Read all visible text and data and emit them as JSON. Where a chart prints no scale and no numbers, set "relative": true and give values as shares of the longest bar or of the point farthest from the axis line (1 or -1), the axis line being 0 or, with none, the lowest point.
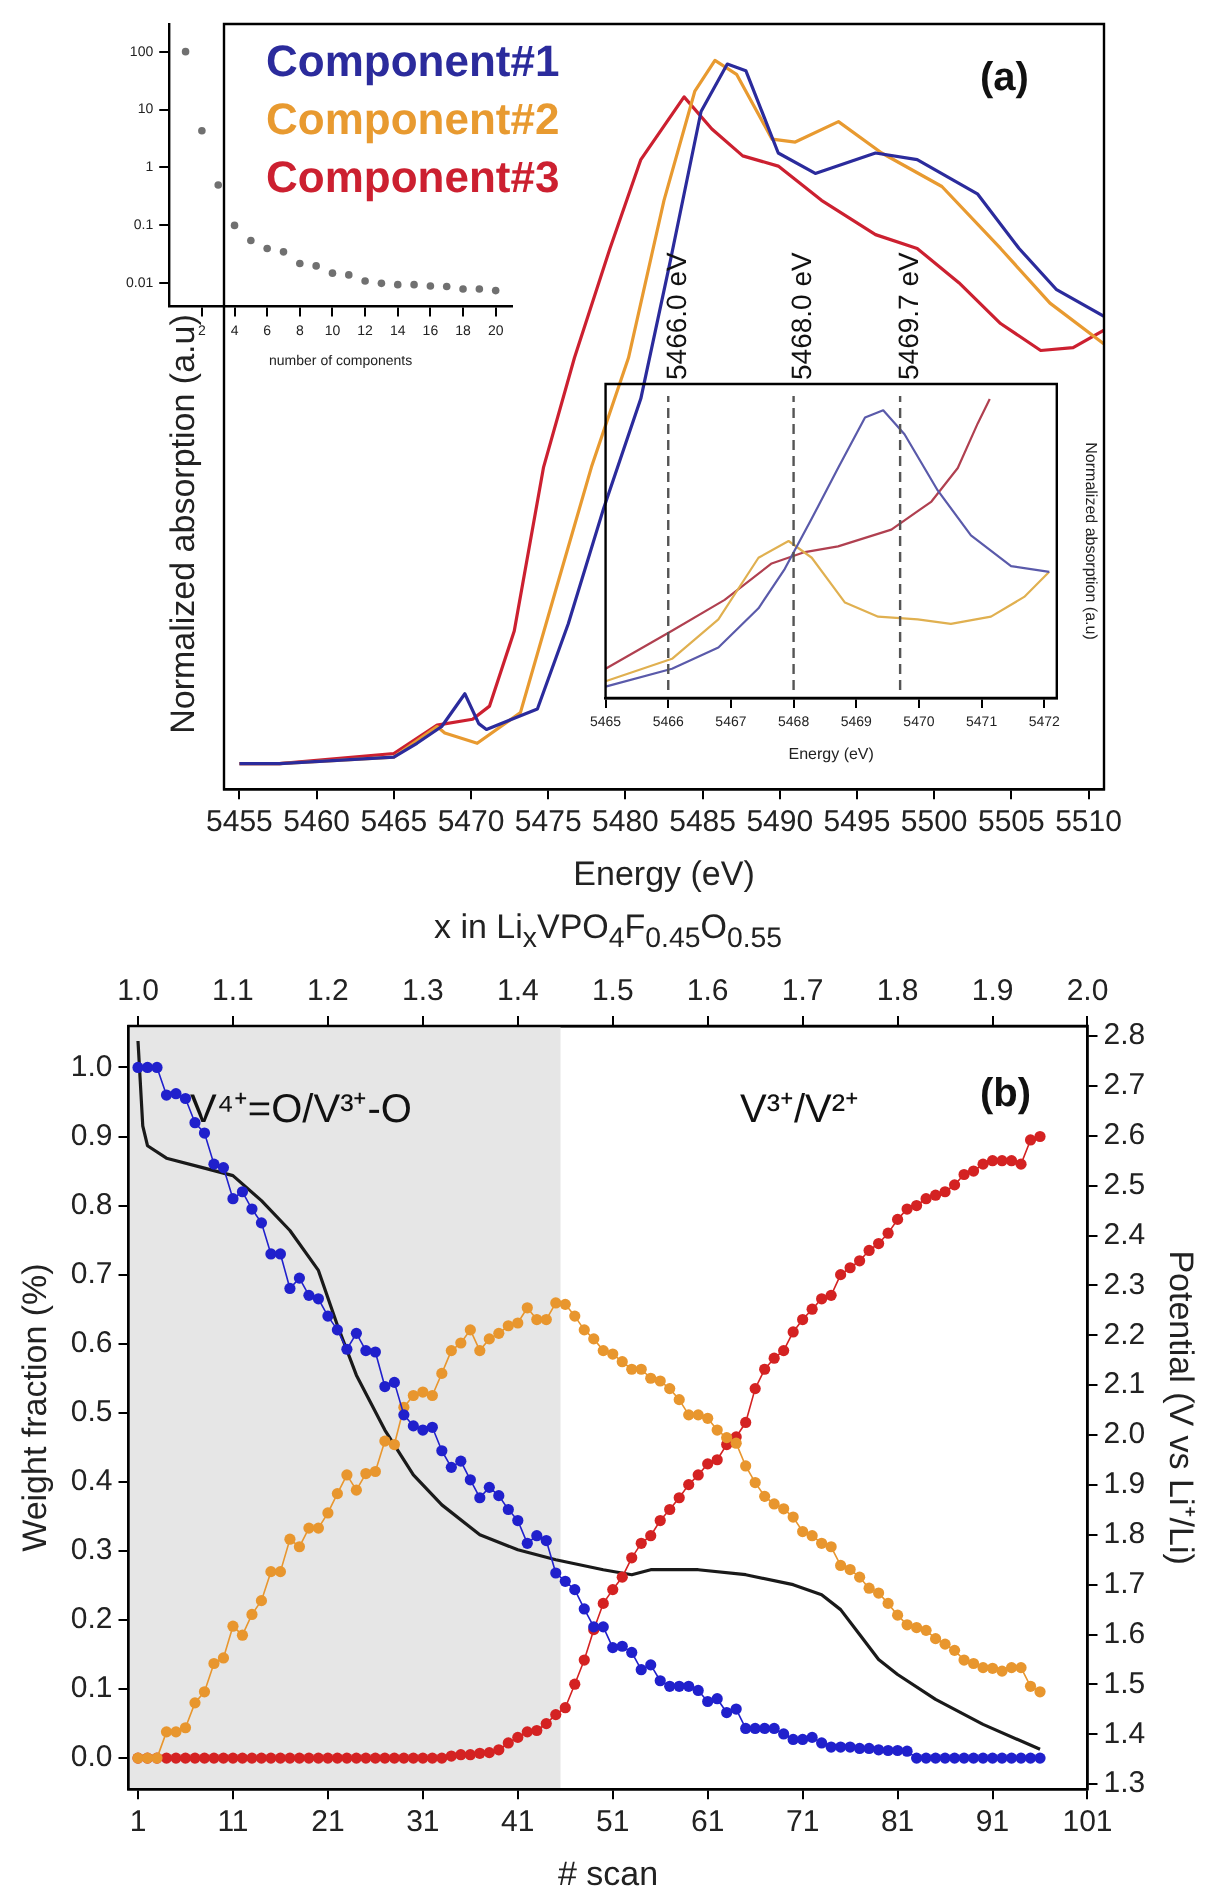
{
  "chart_data": [
    {
      "type": "line",
      "relative": true,
      "xlabel": "Energy (eV)",
      "ylabel": "Normalized absorption (a.u)",
      "xlim": [
        5454,
        5511
      ],
      "xticks": [
        5455,
        5460,
        5465,
        5470,
        5475,
        5480,
        5485,
        5490,
        5495,
        5500,
        5505,
        5510
      ],
      "marker": "none",
      "legend": "top left",
      "annotations": [
        "(a)"
      ],
      "series": [
        {
          "name": "Component#1",
          "color": "#2b2b9c",
          "x": [
            5455,
            5457.6,
            5465,
            5466.5,
            5468.1,
            5469.6,
            5470.5,
            5471,
            5474.3,
            5476.3,
            5478.6,
            5481,
            5482.9,
            5484.9,
            5486.6,
            5487.8,
            5489.9,
            5492.3,
            5496.2,
            5498.9,
            5502.8,
            5505.5,
            5507.9,
            5511
          ],
          "values": [
            0.035,
            0.035,
            0.044,
            0.063,
            0.086,
            0.131,
            0.09,
            0.082,
            0.11,
            0.227,
            0.386,
            0.536,
            0.724,
            0.93,
            0.995,
            0.986,
            0.873,
            0.845,
            0.873,
            0.864,
            0.817,
            0.742,
            0.686,
            0.649
          ]
        },
        {
          "name": "Component#2",
          "color": "#e89a30",
          "x": [
            5455,
            5457.6,
            5465,
            5467.8,
            5468.3,
            5470.4,
            5473.2,
            5475.5,
            5477.8,
            5480.2,
            5482.5,
            5484.5,
            5485.8,
            5487.2,
            5489.5,
            5491,
            5493.8,
            5496.6,
            5500.5,
            5504.3,
            5507.5,
            5511
          ],
          "values": [
            0.035,
            0.035,
            0.044,
            0.086,
            0.077,
            0.063,
            0.105,
            0.274,
            0.442,
            0.592,
            0.808,
            0.958,
            1.0,
            0.981,
            0.892,
            0.888,
            0.916,
            0.873,
            0.827,
            0.742,
            0.667,
            0.611
          ]
        },
        {
          "name": "Component#3",
          "color": "#cc2030",
          "x": [
            5455,
            5457.6,
            5465,
            5467.8,
            5470.1,
            5471.2,
            5472.8,
            5474.7,
            5476.7,
            5479,
            5481,
            5483.8,
            5485.6,
            5487.6,
            5489.9,
            5492.7,
            5496.2,
            5498.9,
            5501.6,
            5504.3,
            5506.9,
            5509,
            5511
          ],
          "values": [
            0.035,
            0.035,
            0.049,
            0.088,
            0.096,
            0.114,
            0.217,
            0.442,
            0.592,
            0.742,
            0.864,
            0.95,
            0.906,
            0.869,
            0.855,
            0.808,
            0.761,
            0.742,
            0.695,
            0.639,
            0.602,
            0.606,
            0.63
          ]
        }
      ]
    },
    {
      "type": "scatter",
      "xlabel": "number of components",
      "xlim": [
        0,
        21
      ],
      "xticks": [
        2,
        4,
        6,
        8,
        10,
        12,
        14,
        16,
        18,
        20
      ],
      "log": "y",
      "ylim": [
        0.004,
        300
      ],
      "yticks": [
        0.01,
        0.1,
        1,
        10,
        100
      ],
      "marker": "circle",
      "series": [
        {
          "color": "#707070",
          "x": [
            1,
            2,
            3,
            4,
            5,
            6,
            7,
            8,
            9,
            10,
            11,
            12,
            13,
            14,
            15,
            16,
            17,
            18,
            19,
            20
          ],
          "values": [
            100,
            4.3,
            0.5,
            0.1,
            0.055,
            0.04,
            0.035,
            0.022,
            0.02,
            0.015,
            0.014,
            0.011,
            0.01,
            0.0095,
            0.0095,
            0.009,
            0.0088,
            0.008,
            0.008,
            0.0075
          ]
        }
      ]
    },
    {
      "type": "line",
      "relative": true,
      "xlabel": "Energy (eV)",
      "ylabel": "Normalized absorption (a.u)",
      "xlim": [
        5465,
        5472.2
      ],
      "xticks": [
        5465,
        5466,
        5467,
        5468,
        5469,
        5470,
        5471,
        5472
      ],
      "marker": "none",
      "ref_lines": [
        {
          "axis": "x",
          "value": 5466.0,
          "label": "5466.0 eV",
          "line_style": "dashed",
          "color": "#555555"
        },
        {
          "axis": "x",
          "value": 5468.0,
          "label": "5468.0 eV",
          "line_style": "dashed",
          "color": "#555555"
        },
        {
          "axis": "x",
          "value": 5469.7,
          "label": "5469.7 eV",
          "line_style": "dashed",
          "color": "#555555"
        }
      ],
      "series": [
        {
          "color": "#5a5aaa",
          "x": [
            5465,
            5466.06,
            5466.8,
            5467.44,
            5467.86,
            5468.29,
            5468.71,
            5469.14,
            5469.43,
            5469.77,
            5470.3,
            5470.83,
            5471.47,
            5472.08
          ],
          "values": [
            0.038,
            0.098,
            0.169,
            0.3,
            0.432,
            0.6,
            0.769,
            0.938,
            0.962,
            0.882,
            0.694,
            0.544,
            0.441,
            0.422
          ]
        },
        {
          "color": "#e0b050",
          "x": [
            5465,
            5466.06,
            5466.8,
            5467.44,
            5467.92,
            5468.29,
            5468.82,
            5469.35,
            5469.98,
            5470.51,
            5471.15,
            5471.68,
            5472.08
          ],
          "values": [
            0.056,
            0.131,
            0.263,
            0.469,
            0.525,
            0.469,
            0.319,
            0.272,
            0.263,
            0.248,
            0.272,
            0.338,
            0.422
          ]
        },
        {
          "color": "#b04050",
          "x": [
            5465,
            5466.06,
            5466.9,
            5467.65,
            5468.18,
            5468.71,
            5469.56,
            5470.2,
            5470.62,
            5470.94,
            5471.13
          ],
          "values": [
            0.098,
            0.225,
            0.328,
            0.45,
            0.488,
            0.507,
            0.563,
            0.657,
            0.769,
            0.919,
            1.0
          ]
        }
      ]
    },
    {
      "type": "line",
      "xlabel": "# scan",
      "ylabel": "Weight fraction (%)",
      "y2label": "Potential (V vs Li⁺/Li)",
      "x2label": "x in Li$_{x}$VPO$_{4}$F$_{0.45}$O$_{0.55}$",
      "xlim": [
        0,
        101
      ],
      "xticks": [
        1,
        11,
        21,
        31,
        41,
        51,
        61,
        71,
        81,
        91,
        101
      ],
      "x2lim": [
        0.99,
        2.0
      ],
      "x2ticks": [
        {
          "value": 1.0,
          "label": "1.0"
        },
        {
          "value": 1.1,
          "label": "1.1"
        },
        {
          "value": 1.2,
          "label": "1.2"
        },
        {
          "value": 1.3,
          "label": "1.3"
        },
        {
          "value": 1.4,
          "label": "1.4"
        },
        {
          "value": 1.5,
          "label": "1.5"
        },
        {
          "value": 1.6,
          "label": "1.6"
        },
        {
          "value": 1.7,
          "label": "1.7"
        },
        {
          "value": 1.8,
          "label": "1.8"
        },
        {
          "value": 1.9,
          "label": "1.9"
        },
        {
          "value": 2.0,
          "label": "2.0"
        }
      ],
      "ylim": [
        -0.045,
        1.06
      ],
      "yticks": [
        {
          "value": 0,
          "label": "0.0"
        },
        {
          "value": 0.1,
          "label": "0.1"
        },
        {
          "value": 0.2,
          "label": "0.2"
        },
        {
          "value": 0.3,
          "label": "0.3"
        },
        {
          "value": 0.4,
          "label": "0.4"
        },
        {
          "value": 0.5,
          "label": "0.5"
        },
        {
          "value": 0.6,
          "label": "0.6"
        },
        {
          "value": 0.7,
          "label": "0.7"
        },
        {
          "value": 0.8,
          "label": "0.8"
        },
        {
          "value": 0.9,
          "label": "0.9"
        },
        {
          "value": 1.0,
          "label": "1.0"
        }
      ],
      "y2lim": [
        1.29,
        2.82
      ],
      "y2ticks": [
        {
          "value": 1.3,
          "label": "1.3"
        },
        {
          "value": 1.4,
          "label": "1.4"
        },
        {
          "value": 1.5,
          "label": "1.5"
        },
        {
          "value": 1.6,
          "label": "1.6"
        },
        {
          "value": 1.7,
          "label": "1.7"
        },
        {
          "value": 1.8,
          "label": "1.8"
        },
        {
          "value": 1.9,
          "label": "1.9"
        },
        {
          "value": 2.0,
          "label": "2.0"
        },
        {
          "value": 2.1,
          "label": "2.1"
        },
        {
          "value": 2.2,
          "label": "2.2"
        },
        {
          "value": 2.3,
          "label": "2.3"
        },
        {
          "value": 2.4,
          "label": "2.4"
        },
        {
          "value": 2.5,
          "label": "2.5"
        },
        {
          "value": 2.6,
          "label": "2.6"
        },
        {
          "value": 2.7,
          "label": "2.7"
        },
        {
          "value": 2.8,
          "label": "2.8"
        }
      ],
      "marker": "circle",
      "bands": [
        {
          "axis": "x",
          "from": 0,
          "to": 45.5,
          "color": "#e6e6e6"
        }
      ],
      "annotations": [
        "V⁴⁺=O/V³⁺-O",
        "V³⁺/V²⁺",
        "(b)"
      ],
      "x": [
        1,
        2,
        3,
        4,
        5,
        6,
        7,
        8,
        9,
        10,
        11,
        12,
        13,
        14,
        15,
        16,
        17,
        18,
        19,
        20,
        21,
        22,
        23,
        24,
        25,
        26,
        27,
        28,
        29,
        30,
        31,
        32,
        33,
        34,
        35,
        36,
        37,
        38,
        39,
        40,
        41,
        42,
        43,
        44,
        45,
        46,
        47,
        48,
        49,
        50,
        51,
        52,
        53,
        54,
        55,
        56,
        57,
        58,
        59,
        60,
        61,
        62,
        63,
        64,
        65,
        66,
        67,
        68,
        69,
        70,
        71,
        72,
        73,
        74,
        75,
        76,
        77,
        78,
        79,
        80,
        81,
        82,
        83,
        84,
        85,
        86,
        87,
        88,
        89,
        90,
        91,
        92,
        93,
        94,
        95,
        96
      ],
      "series": [
        {
          "color": "#2020cc",
          "values": [
            1.0,
            1.0,
            1.0,
            0.96,
            0.962,
            0.955,
            0.92,
            0.905,
            0.86,
            0.855,
            0.81,
            0.82,
            0.795,
            0.775,
            0.73,
            0.73,
            0.68,
            0.695,
            0.67,
            0.665,
            0.64,
            0.62,
            0.592,
            0.615,
            0.59,
            0.588,
            0.538,
            0.544,
            0.497,
            0.481,
            0.475,
            0.479,
            0.445,
            0.421,
            0.43,
            0.403,
            0.377,
            0.392,
            0.38,
            0.36,
            0.344,
            0.311,
            0.322,
            0.315,
            0.268,
            0.256,
            0.244,
            0.216,
            0.19,
            0.19,
            0.16,
            0.162,
            0.153,
            0.128,
            0.135,
            0.112,
            0.104,
            0.104,
            0.104,
            0.098,
            0.082,
            0.086,
            0.066,
            0.071,
            0.043,
            0.043,
            0.043,
            0.043,
            0.035,
            0.027,
            0.027,
            0.03,
            0.022,
            0.016,
            0.016,
            0.016,
            0.014,
            0.014,
            0.012,
            0.011,
            0.011,
            0.01,
            0,
            0,
            0,
            0,
            0,
            0,
            0,
            0,
            0,
            0,
            0,
            0,
            0,
            0
          ]
        },
        {
          "color": "#e8962e",
          "values": [
            0,
            0,
            0,
            0.038,
            0.038,
            0.044,
            0.08,
            0.096,
            0.137,
            0.145,
            0.191,
            0.178,
            0.208,
            0.228,
            0.27,
            0.27,
            0.317,
            0.306,
            0.333,
            0.333,
            0.355,
            0.383,
            0.41,
            0.388,
            0.412,
            0.415,
            0.459,
            0.454,
            0.508,
            0.525,
            0.53,
            0.525,
            0.557,
            0.59,
            0.601,
            0.62,
            0.59,
            0.607,
            0.615,
            0.626,
            0.63,
            0.652,
            0.635,
            0.635,
            0.659,
            0.657,
            0.64,
            0.62,
            0.607,
            0.59,
            0.585,
            0.574,
            0.563,
            0.563,
            0.55,
            0.546,
            0.535,
            0.519,
            0.497,
            0.497,
            0.492,
            0.475,
            0.464,
            0.456,
            0.423,
            0.399,
            0.379,
            0.368,
            0.361,
            0.349,
            0.328,
            0.322,
            0.311,
            0.306,
            0.279,
            0.273,
            0.262,
            0.246,
            0.239,
            0.224,
            0.207,
            0.193,
            0.189,
            0.185,
            0.173,
            0.165,
            0.156,
            0.142,
            0.137,
            0.131,
            0.13,
            0.126,
            0.131,
            0.131,
            0.104,
            0.096
          ]
        },
        {
          "color": "#d42222",
          "values": [
            0,
            0,
            0,
            0,
            0,
            0,
            0,
            0,
            0,
            0,
            0,
            0,
            0,
            0,
            0,
            0,
            0,
            0,
            0,
            0,
            0,
            0,
            0,
            0,
            0,
            0,
            0,
            0,
            0,
            0,
            0,
            0,
            0,
            0.003,
            0.005,
            0.005,
            0.007,
            0.008,
            0.012,
            0.022,
            0.03,
            0.038,
            0.04,
            0.05,
            0.063,
            0.073,
            0.107,
            0.142,
            0.186,
            0.224,
            0.244,
            0.262,
            0.29,
            0.311,
            0.322,
            0.344,
            0.36,
            0.377,
            0.396,
            0.41,
            0.426,
            0.432,
            0.454,
            0.465,
            0.486,
            0.535,
            0.563,
            0.579,
            0.59,
            0.617,
            0.635,
            0.65,
            0.665,
            0.67,
            0.7,
            0.71,
            0.72,
            0.735,
            0.745,
            0.76,
            0.78,
            0.795,
            0.8,
            0.81,
            0.815,
            0.82,
            0.83,
            0.845,
            0.85,
            0.86,
            0.865,
            0.865,
            0.865,
            0.86,
            0.895,
            0.9
          ]
        },
        {
          "color": "#1a1a1a",
          "axis": "y2",
          "marker": "none",
          "x": [
            1,
            1.5,
            2,
            4,
            8,
            11,
            14,
            17,
            20,
            22,
            24,
            27,
            30,
            33,
            37,
            41,
            45,
            50,
            53,
            55,
            60,
            65,
            70,
            73,
            75,
            77,
            79,
            81,
            85,
            90,
            96
          ],
          "values": [
            2.79,
            2.62,
            2.58,
            2.555,
            2.535,
            2.52,
            2.47,
            2.41,
            2.33,
            2.22,
            2.12,
            2.01,
            1.92,
            1.86,
            1.8,
            1.77,
            1.75,
            1.73,
            1.72,
            1.73,
            1.73,
            1.72,
            1.7,
            1.68,
            1.65,
            1.6,
            1.55,
            1.52,
            1.47,
            1.42,
            1.37
          ]
        }
      ]
    }
  ]
}
